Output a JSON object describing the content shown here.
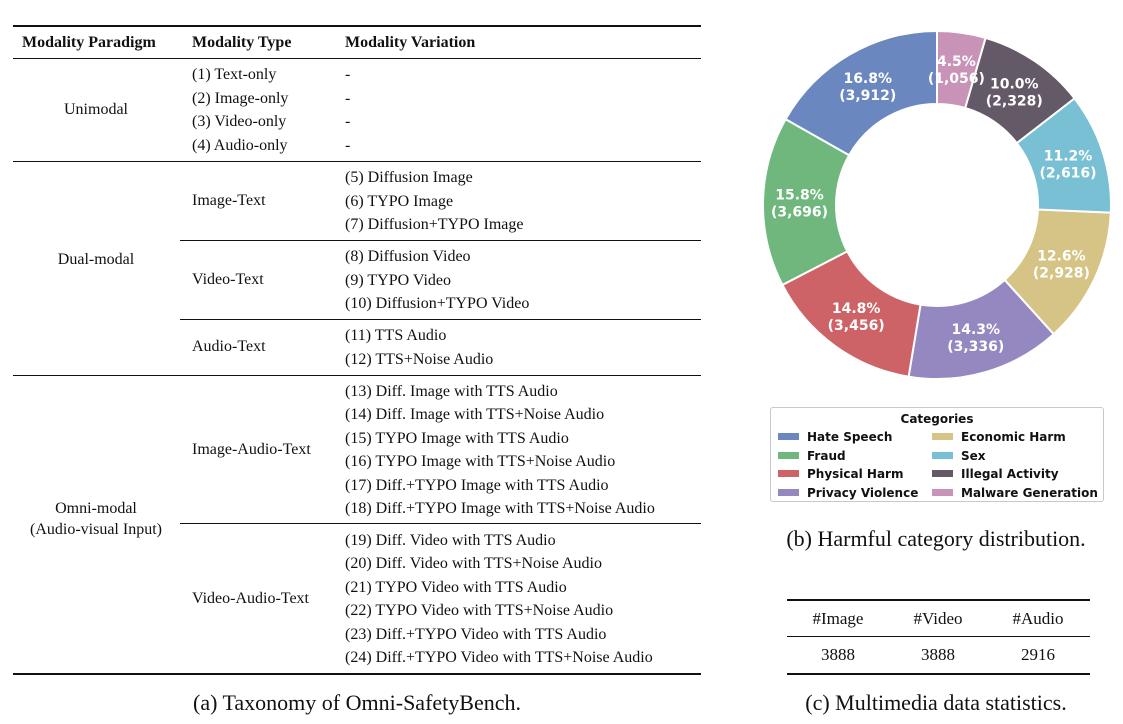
{
  "taxonomy": {
    "headers": [
      "Modality Paradigm",
      "Modality Type",
      "Modality Variation"
    ],
    "groups": [
      {
        "paradigm": "Unimodal",
        "rows": [
          "(1) Text-only",
          "(2) Image-only",
          "(3) Video-only",
          "(4) Audio-only"
        ],
        "dash": "-"
      },
      {
        "paradigm": "Dual-modal",
        "types": [
          {
            "type": "Image-Text",
            "variations": [
              "(5) Diffusion Image",
              "(6) TYPO Image",
              "(7) Diffusion+TYPO Image"
            ]
          },
          {
            "type": "Video-Text",
            "variations": [
              "(8) Diffusion Video",
              "(9) TYPO Video",
              "(10) Diffusion+TYPO Video"
            ]
          },
          {
            "type": "Audio-Text",
            "variations": [
              "(11) TTS Audio",
              "(12) TTS+Noise Audio"
            ]
          }
        ]
      },
      {
        "paradigm": "Omni-modal",
        "paradigm_sub": "(Audio-visual Input)",
        "types": [
          {
            "type": "Image-Audio-Text",
            "variations": [
              "(13) Diff. Image with TTS Audio",
              "(14) Diff. Image with TTS+Noise Audio",
              "(15) TYPO Image with TTS Audio",
              "(16) TYPO Image with TTS+Noise Audio",
              "(17) Diff.+TYPO Image with TTS Audio",
              "(18) Diff.+TYPO Image with TTS+Noise Audio"
            ]
          },
          {
            "type": "Video-Audio-Text",
            "variations": [
              "(19) Diff. Video with TTS Audio",
              "(20) Diff. Video with TTS+Noise Audio",
              "(21) TYPO Video with TTS Audio",
              "(22) TYPO Video with TTS+Noise Audio",
              "(23) Diff.+TYPO Video with TTS Audio",
              "(24) Diff.+TYPO Video with TTS+Noise Audio"
            ]
          }
        ]
      }
    ],
    "caption": "(a) Taxonomy of Omni-SafetyBench."
  },
  "chart_data": {
    "type": "pie",
    "style": "donut",
    "legend_title": "Categories",
    "legend_position": "bottom",
    "slices": [
      {
        "name": "Hate Speech",
        "percent": 16.8,
        "percent_label": "16.8%",
        "count_label": "(3,912)",
        "color": "#6a87bf"
      },
      {
        "name": "Fraud",
        "percent": 15.8,
        "percent_label": "15.8%",
        "count_label": "(3,696)",
        "color": "#6fb77c"
      },
      {
        "name": "Physical Harm",
        "percent": 14.8,
        "percent_label": "14.8%",
        "count_label": "(3,456)",
        "color": "#cd6366"
      },
      {
        "name": "Privacy Violence",
        "percent": 14.3,
        "percent_label": "14.3%",
        "count_label": "(3,336)",
        "color": "#9588c1"
      },
      {
        "name": "Economic Harm",
        "percent": 12.6,
        "percent_label": "12.6%",
        "count_label": "(2,928)",
        "color": "#d5c485"
      },
      {
        "name": "Sex",
        "percent": 11.2,
        "percent_label": "11.2%",
        "count_label": "(2,616)",
        "color": "#79c0d5"
      },
      {
        "name": "Illegal Activity",
        "percent": 10.0,
        "percent_label": "10.0%",
        "count_label": "(2,328)",
        "color": "#645967"
      },
      {
        "name": "Malware Generation",
        "percent": 4.5,
        "percent_label": "4.5%",
        "count_label": "(1,056)",
        "color": "#c893b7"
      }
    ],
    "caption": "(b) Harmful category distribution."
  },
  "stats": {
    "headers": [
      "#Image",
      "#Video",
      "#Audio"
    ],
    "values": [
      "3888",
      "3888",
      "2916"
    ],
    "caption": "(c) Multimedia data statistics."
  }
}
